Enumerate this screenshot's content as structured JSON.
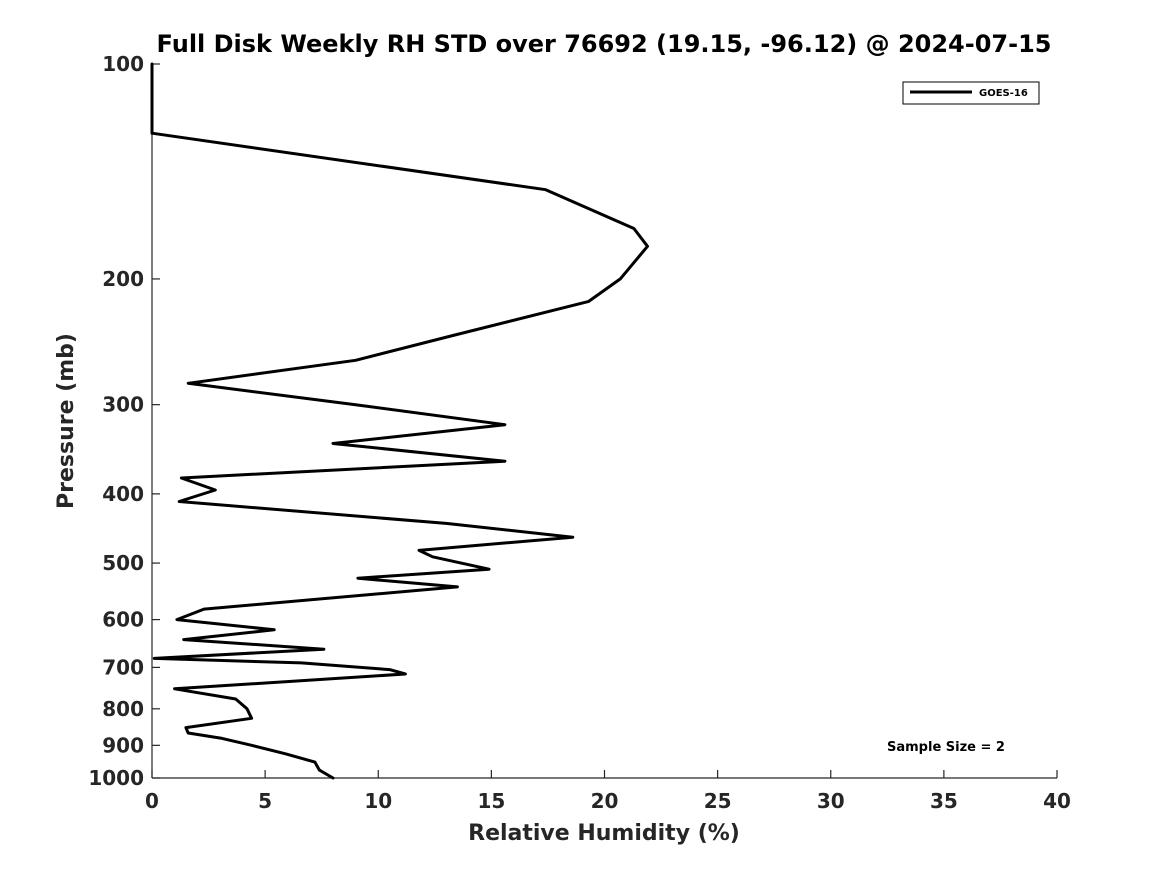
{
  "chart_data": {
    "type": "line",
    "title": "Full Disk Weekly RH STD over 76692 (19.15, -96.12) @ 2024-07-15",
    "xlabel": "Relative Humidity (%)",
    "ylabel": "Pressure (mb)",
    "xlim": [
      0,
      40
    ],
    "ylim": [
      100,
      1000
    ],
    "y_scale": "log",
    "y_reversed": true,
    "x_ticks": [
      0,
      5,
      10,
      15,
      20,
      25,
      30,
      35,
      40
    ],
    "y_ticks": [
      100,
      200,
      300,
      400,
      500,
      600,
      700,
      800,
      900,
      1000
    ],
    "grid": false,
    "legend_position": "top-right",
    "series": [
      {
        "name": "GOES-16",
        "color": "#000000",
        "points": [
          [
            0.0,
            100
          ],
          [
            0.0,
            125
          ],
          [
            17.4,
            150
          ],
          [
            21.3,
            170
          ],
          [
            21.9,
            180
          ],
          [
            20.7,
            200
          ],
          [
            19.3,
            215
          ],
          [
            13.3,
            240
          ],
          [
            9.0,
            260
          ],
          [
            1.6,
            280
          ],
          [
            9.0,
            300
          ],
          [
            15.6,
            320
          ],
          [
            8.0,
            340
          ],
          [
            15.6,
            360
          ],
          [
            1.3,
            380
          ],
          [
            2.8,
            395
          ],
          [
            1.2,
            410
          ],
          [
            13.0,
            440
          ],
          [
            18.6,
            460
          ],
          [
            11.8,
            480
          ],
          [
            12.4,
            490
          ],
          [
            14.9,
            510
          ],
          [
            9.1,
            525
          ],
          [
            13.5,
            540
          ],
          [
            2.3,
            580
          ],
          [
            1.1,
            600
          ],
          [
            5.4,
            620
          ],
          [
            1.4,
            640
          ],
          [
            7.6,
            660
          ],
          [
            0.1,
            680
          ],
          [
            6.6,
            690
          ],
          [
            10.5,
            705
          ],
          [
            11.2,
            715
          ],
          [
            1.0,
            750
          ],
          [
            3.7,
            775
          ],
          [
            4.2,
            800
          ],
          [
            4.4,
            825
          ],
          [
            1.5,
            850
          ],
          [
            1.6,
            865
          ],
          [
            3.1,
            880
          ],
          [
            4.4,
            900
          ],
          [
            5.9,
            925
          ],
          [
            7.2,
            950
          ],
          [
            7.4,
            975
          ],
          [
            8.0,
            1000
          ]
        ]
      }
    ],
    "annotations": [
      "Sample Size = 2"
    ]
  }
}
